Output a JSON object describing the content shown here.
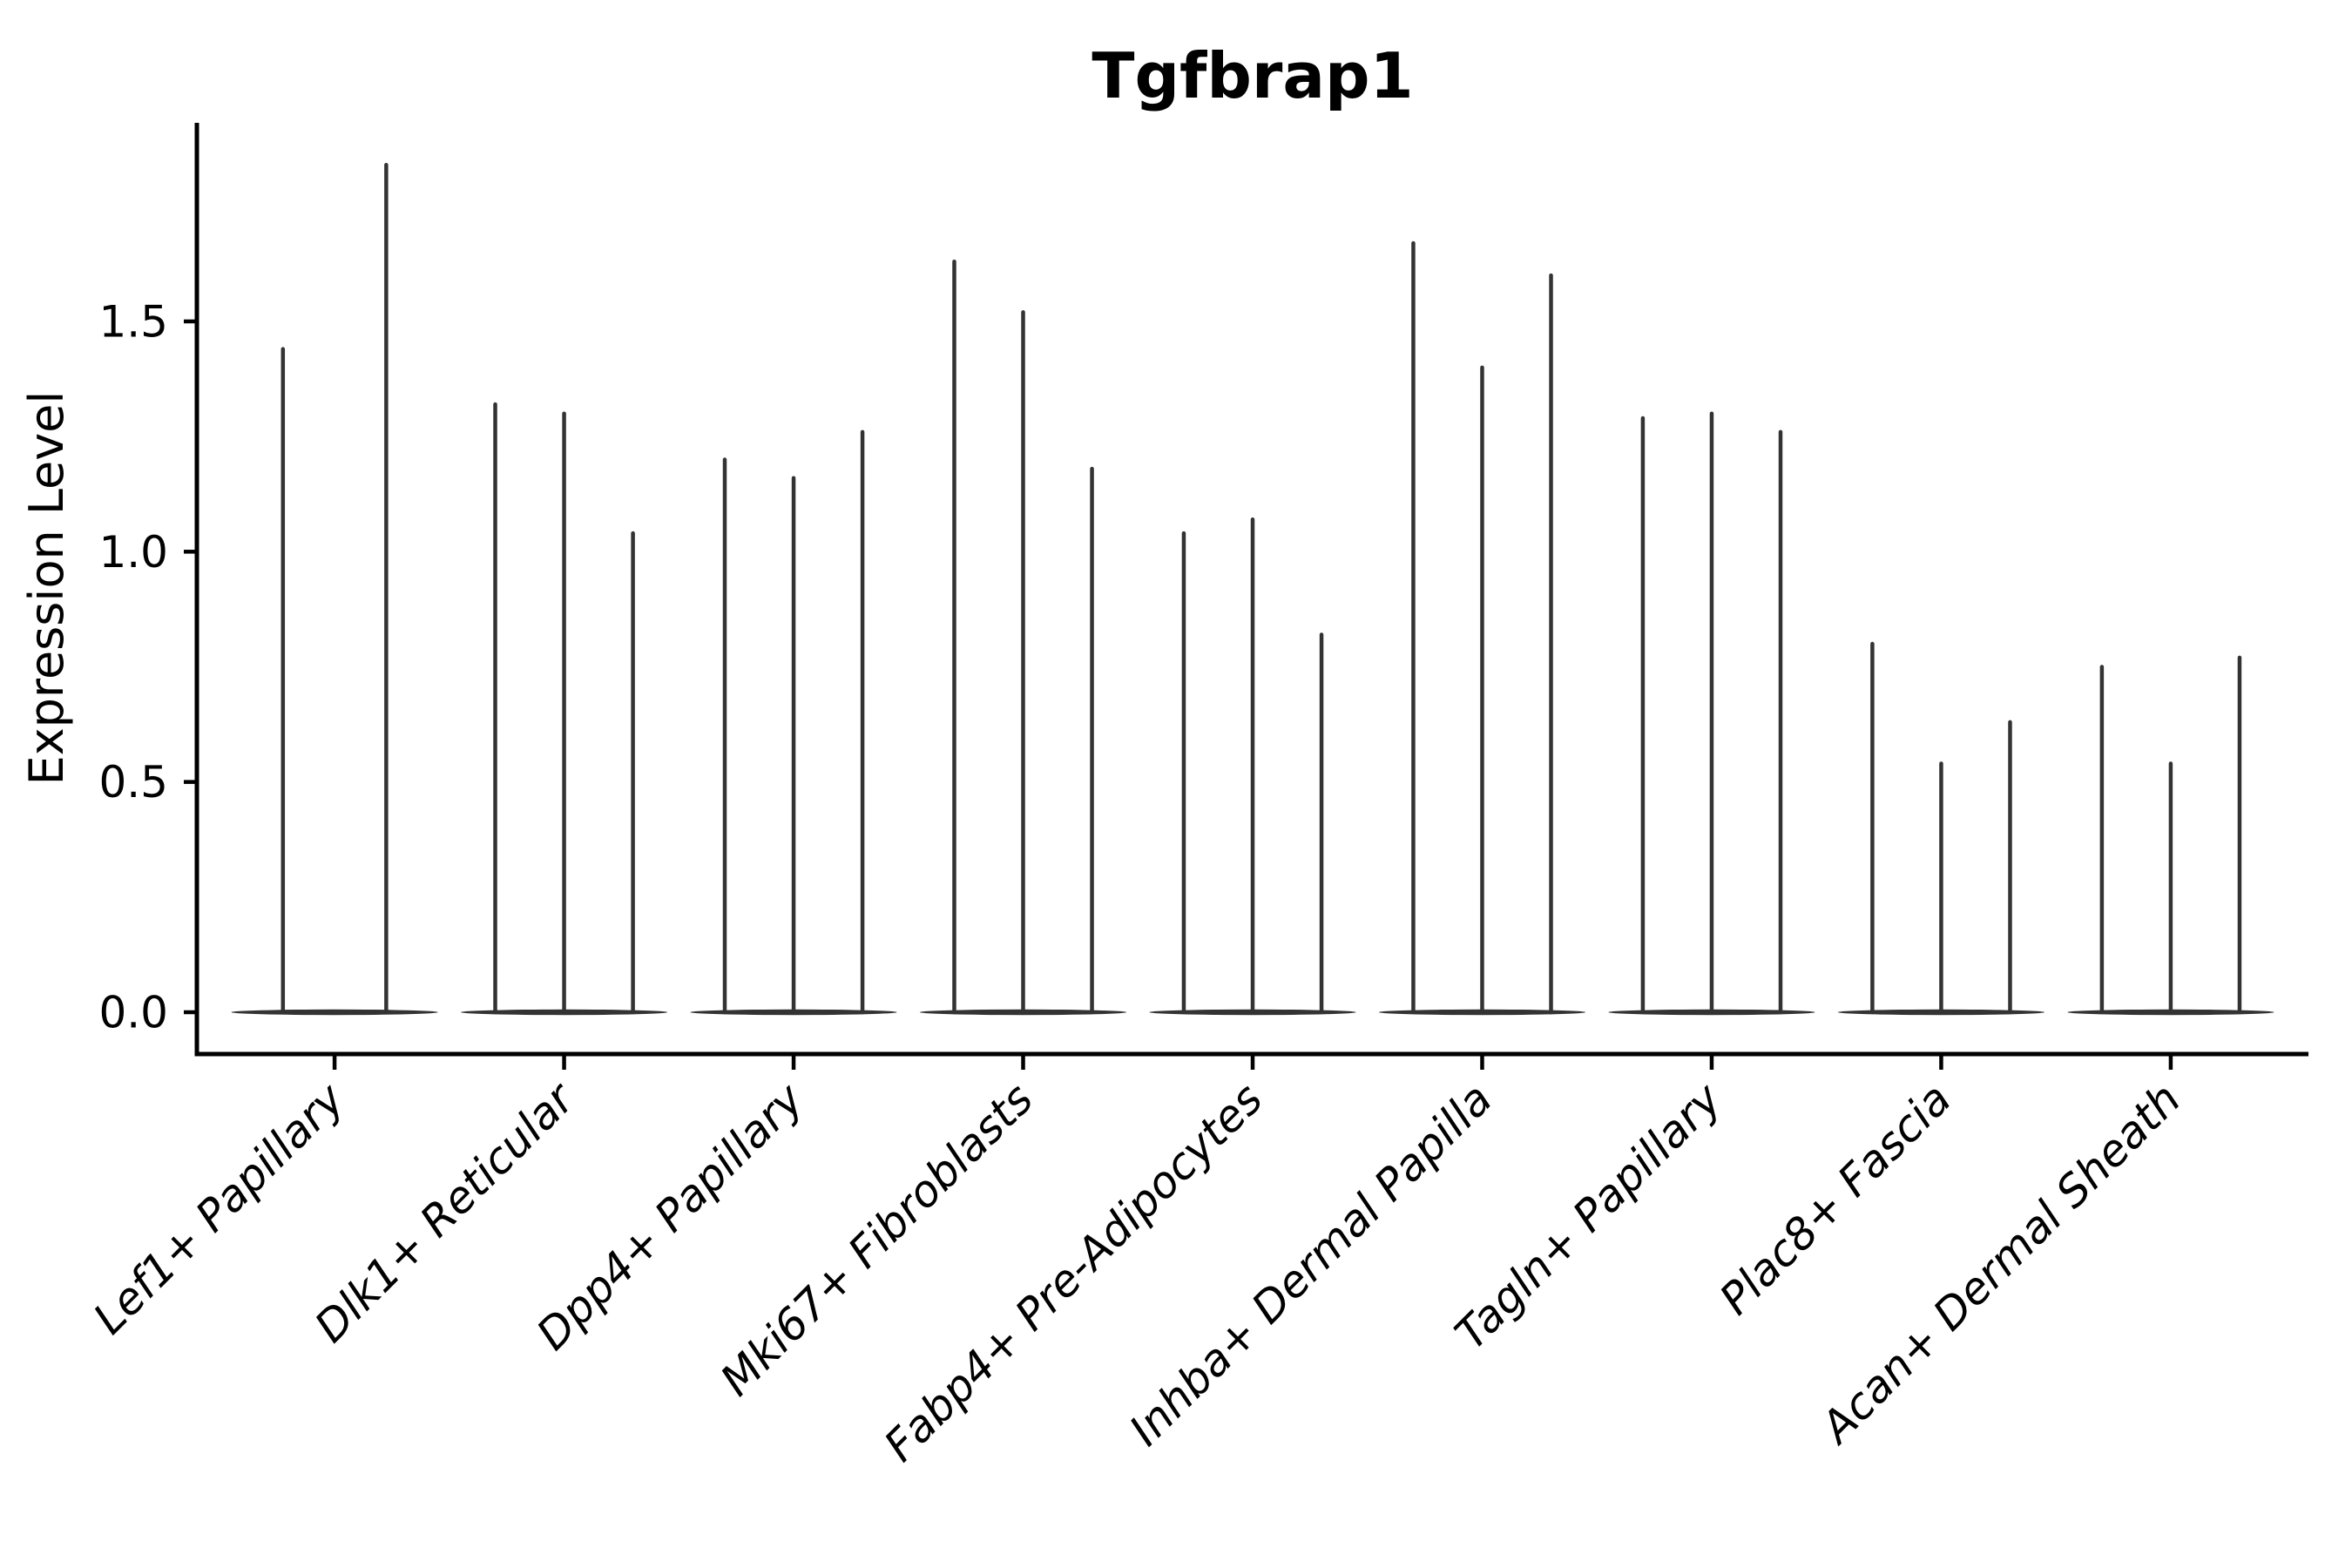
{
  "chart_data": {
    "type": "violin",
    "title": "Tgfbrap1",
    "ylabel": "Expression Level",
    "xlabel": "",
    "grid": false,
    "legend": "none",
    "background_color": "#ffffff",
    "axis_color": "#000000",
    "violin_color": "#333333",
    "ylim": [
      -0.09,
      1.93
    ],
    "yticks": [
      0.0,
      0.5,
      1.0,
      1.5
    ],
    "ytick_labels": [
      "0.0",
      "0.5",
      "1.0",
      "1.5"
    ],
    "categories": [
      "Lef1+ Papillary",
      "Dlk1+ Reticular",
      "Dpp4+ Papillary",
      "Mki67+ Fibroblasts",
      "Fabp4+ Pre-Adipocytes",
      "Inhba+ Dermal Papilla",
      "Tagln+ Papillary",
      "Plac8+ Fascia",
      "Acan+ Dermal Sheath"
    ],
    "series": [
      {
        "category": "Lef1+ Papillary",
        "violin_maxima": [
          1.44,
          1.84
        ]
      },
      {
        "category": "Dlk1+ Reticular",
        "violin_maxima": [
          1.32,
          1.3,
          1.04
        ]
      },
      {
        "category": "Dpp4+ Papillary",
        "violin_maxima": [
          1.2,
          1.16,
          1.26
        ]
      },
      {
        "category": "Mki67+ Fibroblasts",
        "violin_maxima": [
          1.63,
          1.52,
          1.18
        ]
      },
      {
        "category": "Fabp4+ Pre-Adipocytes",
        "violin_maxima": [
          1.04,
          1.07,
          0.82
        ]
      },
      {
        "category": "Inhba+ Dermal Papilla",
        "violin_maxima": [
          1.67,
          1.4,
          1.6
        ]
      },
      {
        "category": "Tagln+ Papillary",
        "violin_maxima": [
          1.29,
          1.3,
          1.26
        ]
      },
      {
        "category": "Plac8+ Fascia",
        "violin_maxima": [
          0.8,
          0.54,
          0.63
        ]
      },
      {
        "category": "Acan+ Dermal Sheath",
        "violin_maxima": [
          0.75,
          0.54,
          0.77
        ]
      }
    ],
    "violin_baseline_value": 0.0,
    "note": "Each violin is collapsed to a flat base at 0 with a thin density spike up to its maximum expression value."
  }
}
